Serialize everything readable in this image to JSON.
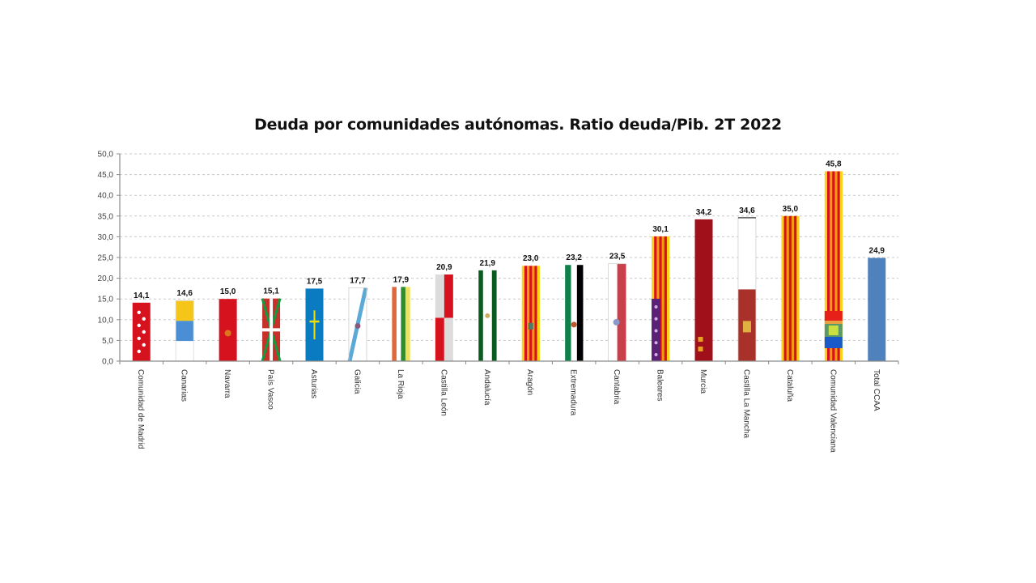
{
  "chart_data": {
    "type": "bar",
    "title": "Deuda por comunidades autónomas. Ratio deuda/Pib. 2T 2022",
    "xlabel": "",
    "ylabel": "",
    "ylim": [
      0,
      50
    ],
    "yticks": [
      "0,0",
      "5,0",
      "10,0",
      "15,0",
      "20,0",
      "25,0",
      "30,0",
      "35,0",
      "40,0",
      "45,0",
      "50,0"
    ],
    "grid": true,
    "categories": [
      "Comunidad de Madrid",
      "Canarias",
      "Navarra",
      "País Vasco",
      "Asturias",
      "Galicia",
      "La Rioja",
      "Castilla León",
      "Andalucía",
      "Aragón",
      "Extremadura",
      "Cantabria",
      "Baleares",
      "Murcia",
      "Castilla La Mancha",
      "Cataluña",
      "Comunidad Valenciana",
      "Total CCAA"
    ],
    "values": [
      14.1,
      14.6,
      15.0,
      15.1,
      17.5,
      17.7,
      17.9,
      20.9,
      21.9,
      23.0,
      23.2,
      23.5,
      30.1,
      34.2,
      34.6,
      35.0,
      45.8,
      24.9
    ],
    "value_labels": [
      "14,1",
      "14,6",
      "15,0",
      "15,1",
      "17,5",
      "17,7",
      "17,9",
      "20,9",
      "21,9",
      "23,0",
      "23,2",
      "23,5",
      "30,1",
      "34,2",
      "34,6",
      "35,0",
      "45,8",
      "24,9"
    ],
    "bar_styles": [
      "madrid",
      "canarias",
      "navarra",
      "euskadi",
      "asturias",
      "galicia",
      "rioja",
      "castilla-leon",
      "andalucia",
      "aragon",
      "extremadura",
      "cantabria",
      "baleares",
      "murcia",
      "castilla-la-mancha",
      "cataluna",
      "valencia",
      "total"
    ],
    "colors": {
      "red": "#d7121f",
      "yellow": "#f5c518",
      "orange": "#f29a0e",
      "blue": "#0a7bc0",
      "total": "#4f81bd",
      "green_dark": "#0b5a1f",
      "murcia": "#a0101b",
      "purple": "#5b2176",
      "grid": "#c8c8c8",
      "axis": "#8a8a8a"
    }
  }
}
